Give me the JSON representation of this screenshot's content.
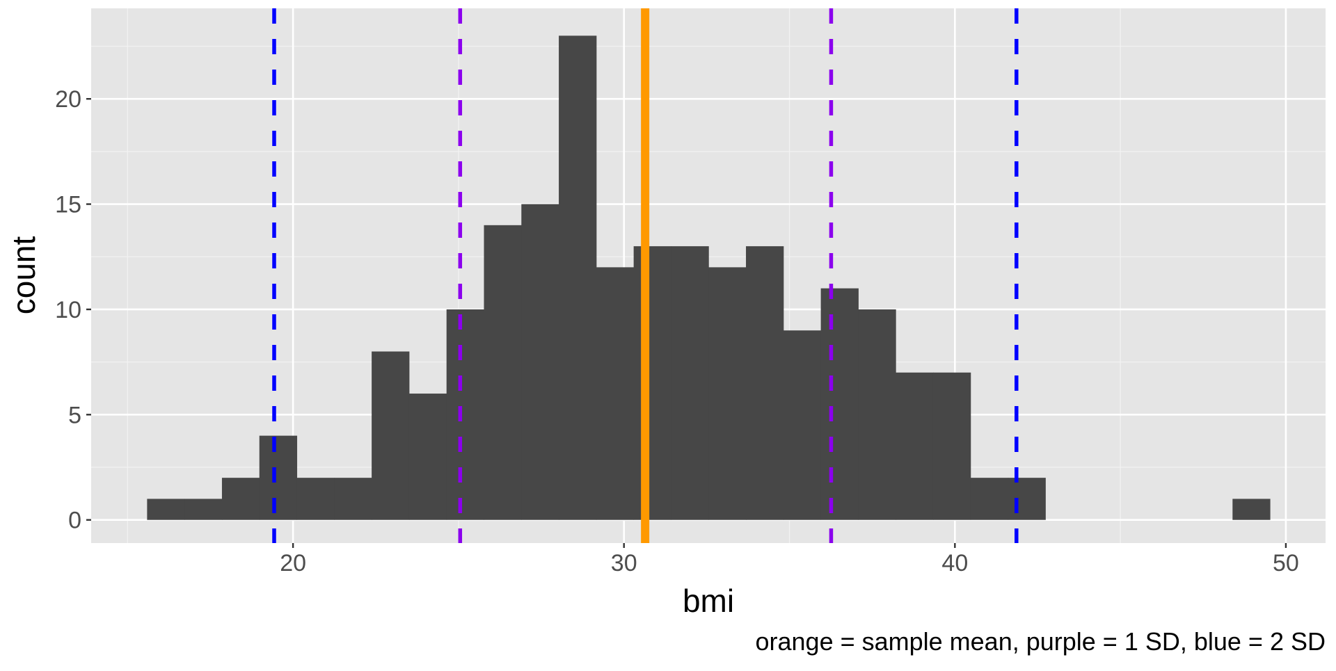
{
  "chart_data": {
    "type": "bar",
    "subtype": "histogram",
    "title": "",
    "xlabel": "bmi",
    "ylabel": "count",
    "caption": "orange = sample mean, purple = 1 SD, blue = 2 SD",
    "xlim": [
      13.9,
      51.2
    ],
    "ylim": [
      -1.1,
      24.3
    ],
    "x_ticks": [
      20,
      30,
      40,
      50
    ],
    "x_tick_labels": [
      "20",
      "30",
      "40",
      "50"
    ],
    "y_ticks": [
      0,
      5,
      10,
      15,
      20
    ],
    "y_tick_labels": [
      "0",
      "5",
      "10",
      "15",
      "20"
    ],
    "bins": 30,
    "bin_start": 15.59,
    "bin_width": 1.131,
    "counts": [
      1,
      1,
      2,
      4,
      2,
      2,
      8,
      6,
      10,
      14,
      15,
      23,
      12,
      13,
      13,
      12,
      13,
      9,
      11,
      10,
      7,
      7,
      2,
      2,
      0,
      0,
      0,
      0,
      0,
      1
    ],
    "fill": "#474747",
    "grid": true,
    "reference_lines": [
      {
        "name": "mean",
        "value": 30.64,
        "color": "#FF9900",
        "style": "solid"
      },
      {
        "name": "minus-1-sd",
        "value": 25.05,
        "color": "#8B00EE",
        "style": "dashed"
      },
      {
        "name": "plus-1-sd",
        "value": 36.26,
        "color": "#8B00EE",
        "style": "dashed"
      },
      {
        "name": "minus-2-sd",
        "value": 19.43,
        "color": "#0000FF",
        "style": "dashed"
      },
      {
        "name": "plus-2-sd",
        "value": 41.86,
        "color": "#0000FF",
        "style": "dashed"
      }
    ]
  }
}
